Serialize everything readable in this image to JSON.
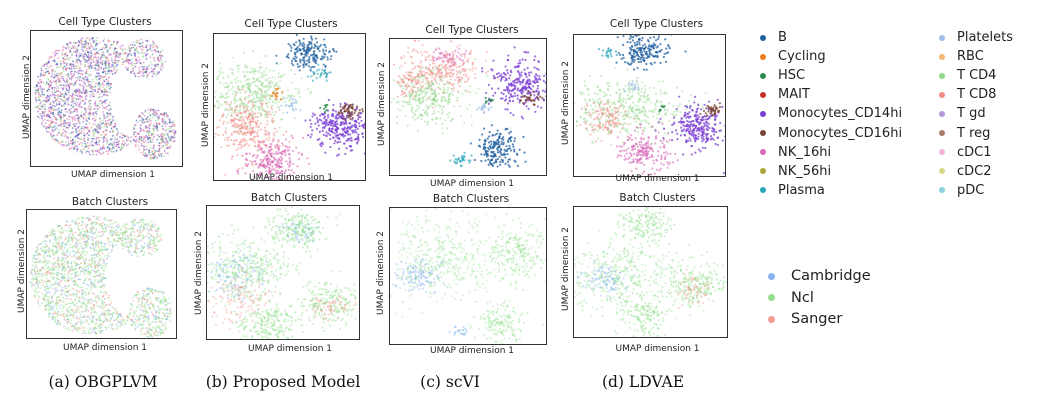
{
  "chart_data": [
    {
      "type": "scatter",
      "id": "a-cell",
      "title": "Cell Type Clusters",
      "xlabel": "UMAP dimension 1",
      "ylabel": "UMAP dimension 2",
      "color_by": "cell_type"
    },
    {
      "type": "scatter",
      "id": "b-cell",
      "title": "Cell Type Clusters",
      "xlabel": "UMAP dimension 1",
      "ylabel": "UMAP dimension 2",
      "color_by": "cell_type"
    },
    {
      "type": "scatter",
      "id": "c-cell",
      "title": "Cell Type Clusters",
      "xlabel": "UMAP dimension 1",
      "ylabel": "UMAP dimension 2",
      "color_by": "cell_type"
    },
    {
      "type": "scatter",
      "id": "d-cell",
      "title": "Cell Type Clusters",
      "xlabel": "UMAP dimension 1",
      "ylabel": "UMAP dimension 2",
      "color_by": "cell_type"
    },
    {
      "type": "scatter",
      "id": "a-batch",
      "title": "Batch Clusters",
      "xlabel": "UMAP dimension 1",
      "ylabel": "UMAP dimension 2",
      "color_by": "batch"
    },
    {
      "type": "scatter",
      "id": "b-batch",
      "title": "Batch Clusters",
      "xlabel": "UMAP dimension 1",
      "ylabel": "UMAP dimension 2",
      "color_by": "batch"
    },
    {
      "type": "scatter",
      "id": "c-batch",
      "title": "Batch Clusters",
      "xlabel": "UMAP dimension 1",
      "ylabel": "UMAP dimension 2",
      "color_by": "batch"
    },
    {
      "type": "scatter",
      "id": "d-batch",
      "title": "Batch Clusters",
      "xlabel": "UMAP dimension 1",
      "ylabel": "UMAP dimension 2",
      "color_by": "batch"
    }
  ],
  "captions": [
    "(a) OBGPLVM",
    "(b) Proposed Model",
    "(c) scVI",
    "(d) LDVAE"
  ],
  "cell_type_legend": [
    {
      "label": "B",
      "color": "#1f5fa0"
    },
    {
      "label": "Cycling",
      "color": "#ef7d1a"
    },
    {
      "label": "HSC",
      "color": "#2a8a4e"
    },
    {
      "label": "MAIT",
      "color": "#c8312b"
    },
    {
      "label": "Monocytes_CD14hi",
      "color": "#7b3fd4"
    },
    {
      "label": "Monocytes_CD16hi",
      "color": "#7a4433"
    },
    {
      "label": "NK_16hi",
      "color": "#d865b8"
    },
    {
      "label": "NK_56hi",
      "color": "#a8a838"
    },
    {
      "label": "Plasma",
      "color": "#2aa6b8"
    },
    {
      "label": "Platelets",
      "color": "#9cc0e3"
    },
    {
      "label": "RBC",
      "color": "#f5b574"
    },
    {
      "label": "T CD4",
      "color": "#90d88a"
    },
    {
      "label": "T CD8",
      "color": "#f08b84"
    },
    {
      "label": "T gd",
      "color": "#b59ad8"
    },
    {
      "label": "T reg",
      "color": "#a97a6a"
    },
    {
      "label": "cDC1",
      "color": "#f0b3d6"
    },
    {
      "label": "cDC2",
      "color": "#d3d88a"
    },
    {
      "label": "pDC",
      "color": "#8fd0e0"
    }
  ],
  "batch_legend": [
    {
      "label": "Cambridge",
      "color": "#87b3ee"
    },
    {
      "label": "Ncl",
      "color": "#93e08e"
    },
    {
      "label": "Sanger",
      "color": "#f29b92"
    }
  ]
}
